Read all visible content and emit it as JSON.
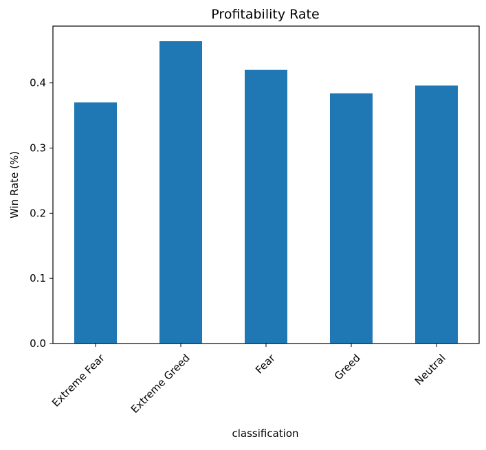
{
  "chart_data": {
    "type": "bar",
    "title": "Profitability Rate",
    "xlabel": "classification",
    "ylabel": "Win Rate (%)",
    "categories": [
      "Extreme Fear",
      "Extreme Greed",
      "Fear",
      "Greed",
      "Neutral"
    ],
    "values": [
      0.37,
      0.464,
      0.42,
      0.384,
      0.396
    ],
    "ylim": [
      0,
      0.4872
    ],
    "yticks": [
      0.0,
      0.1,
      0.2,
      0.3,
      0.4
    ],
    "ytick_labels": [
      "0.0",
      "0.1",
      "0.2",
      "0.3",
      "0.4"
    ],
    "grid": false,
    "legend": "none",
    "bar_color": "#1f77b4"
  }
}
